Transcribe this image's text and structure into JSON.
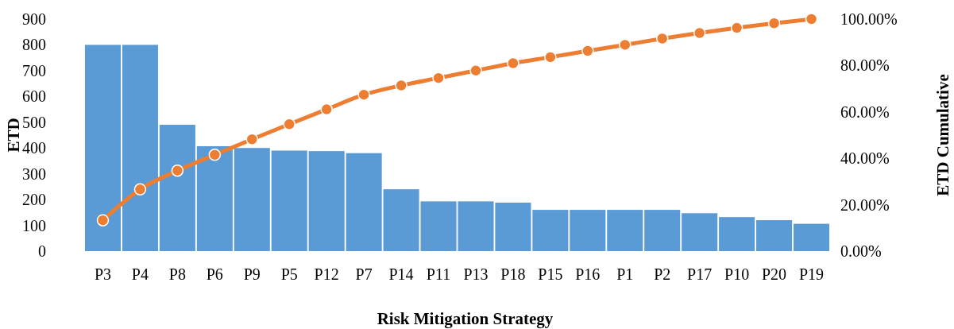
{
  "chart_data": {
    "type": "bar",
    "xlabel": "Risk Mitigation Strategy",
    "ylabel": "ETD",
    "y2label": "ETD Cumulative",
    "categories": [
      "P3",
      "P4",
      "P8",
      "P6",
      "P9",
      "P5",
      "P12",
      "P7",
      "P14",
      "P11",
      "P13",
      "P18",
      "P15",
      "P16",
      "P1",
      "P2",
      "P17",
      "P10",
      "P20",
      "P19"
    ],
    "series": [
      {
        "color": "#5b9bd5",
        "values": [
          800,
          800,
          490,
          407,
          400,
          390,
          388,
          380,
          240,
          193,
          193,
          188,
          160,
          160,
          160,
          160,
          147,
          132,
          120,
          106
        ]
      },
      {
        "type": "line",
        "axis": "y2",
        "color": "#ed7d31",
        "values": [
          13.3,
          26.6,
          34.7,
          41.5,
          48.2,
          54.7,
          61.1,
          67.4,
          71.4,
          74.6,
          77.8,
          81.0,
          83.6,
          86.3,
          88.9,
          91.6,
          94.0,
          96.2,
          98.2,
          100
        ]
      }
    ],
    "ylim": [
      0,
      900
    ],
    "yticks": [
      0,
      100,
      200,
      300,
      400,
      500,
      600,
      700,
      800,
      900
    ],
    "y2lim": [
      0,
      100
    ],
    "y2ticks": [
      {
        "value": 0,
        "label": "0.00%"
      },
      {
        "value": 20,
        "label": "20.00%"
      },
      {
        "value": 40,
        "label": "40.00%"
      },
      {
        "value": 60,
        "label": "60.00%"
      },
      {
        "value": 80,
        "label": "80.00%"
      },
      {
        "value": 100,
        "label": "100.00%"
      }
    ],
    "marker": "circle",
    "line_style": "solid",
    "grid": false
  }
}
